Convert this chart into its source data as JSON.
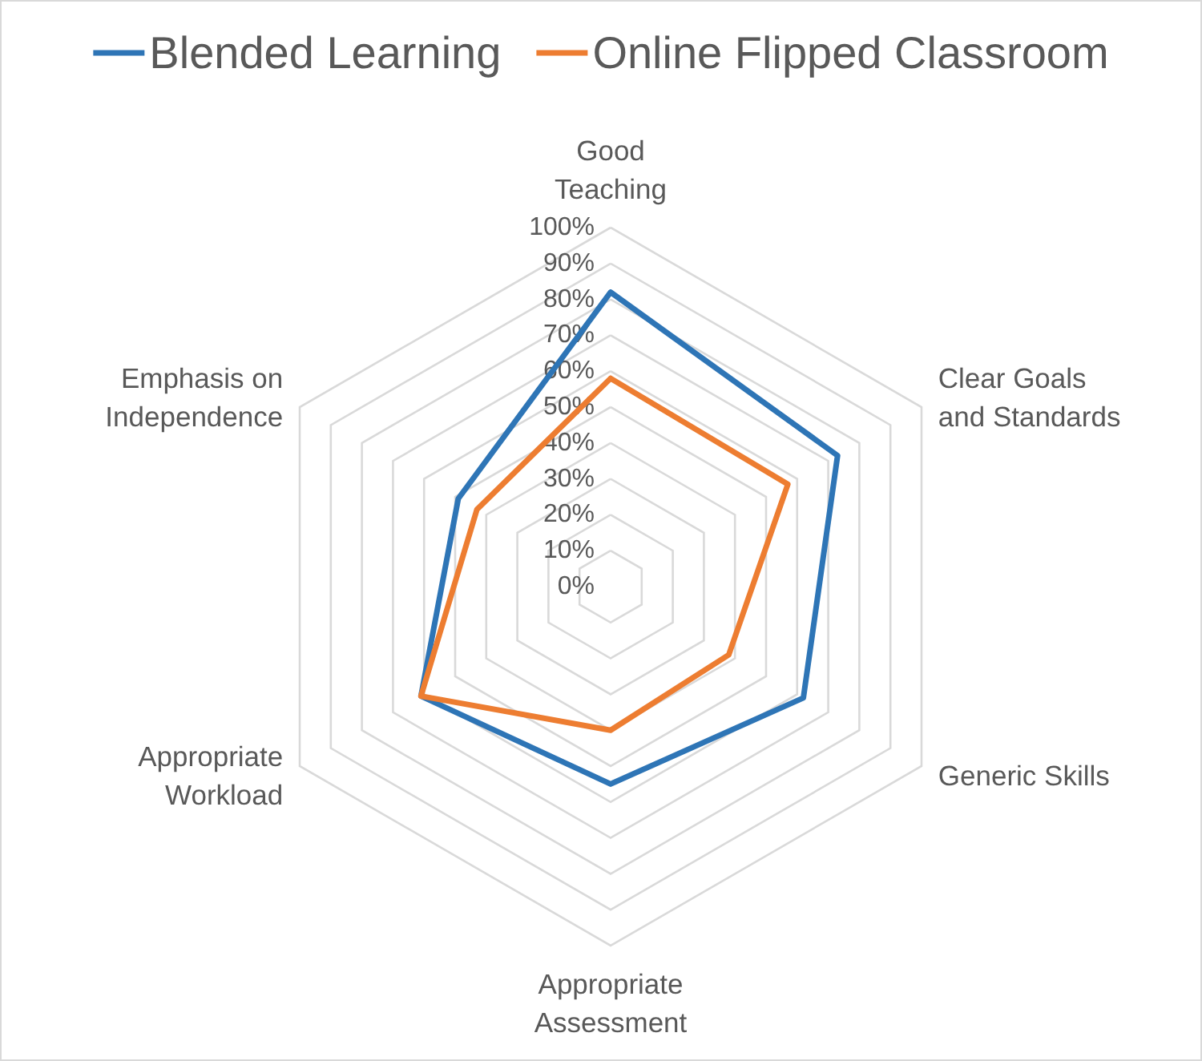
{
  "chart_data": {
    "type": "radar",
    "categories": [
      "Good\nTeaching",
      "Clear Goals\nand Standards",
      "Generic Skills",
      "Appropriate\nAssessment",
      "Appropriate\nWorkload",
      "Emphasis on\nIndependence"
    ],
    "series": [
      {
        "name": "Blended Learning",
        "color": "#2e75b6",
        "values": [
          82,
          73,
          62,
          55,
          61,
          49
        ]
      },
      {
        "name": "Online Flipped Classroom",
        "color": "#ed7d31",
        "values": [
          58,
          57,
          38,
          40,
          61,
          43
        ]
      }
    ],
    "ylim": [
      0,
      100
    ],
    "yticks": [
      {
        "value": 0,
        "label": "0%"
      },
      {
        "value": 10,
        "label": "10%"
      },
      {
        "value": 20,
        "label": "20%"
      },
      {
        "value": 30,
        "label": "30%"
      },
      {
        "value": 40,
        "label": "40%"
      },
      {
        "value": 50,
        "label": "50%"
      },
      {
        "value": 60,
        "label": "60%"
      },
      {
        "value": 70,
        "label": "70%"
      },
      {
        "value": 80,
        "label": "80%"
      },
      {
        "value": 90,
        "label": "90%"
      },
      {
        "value": 100,
        "label": "100%"
      }
    ],
    "grid": true,
    "legend": "top",
    "marker": "none",
    "line_style": "solid"
  }
}
